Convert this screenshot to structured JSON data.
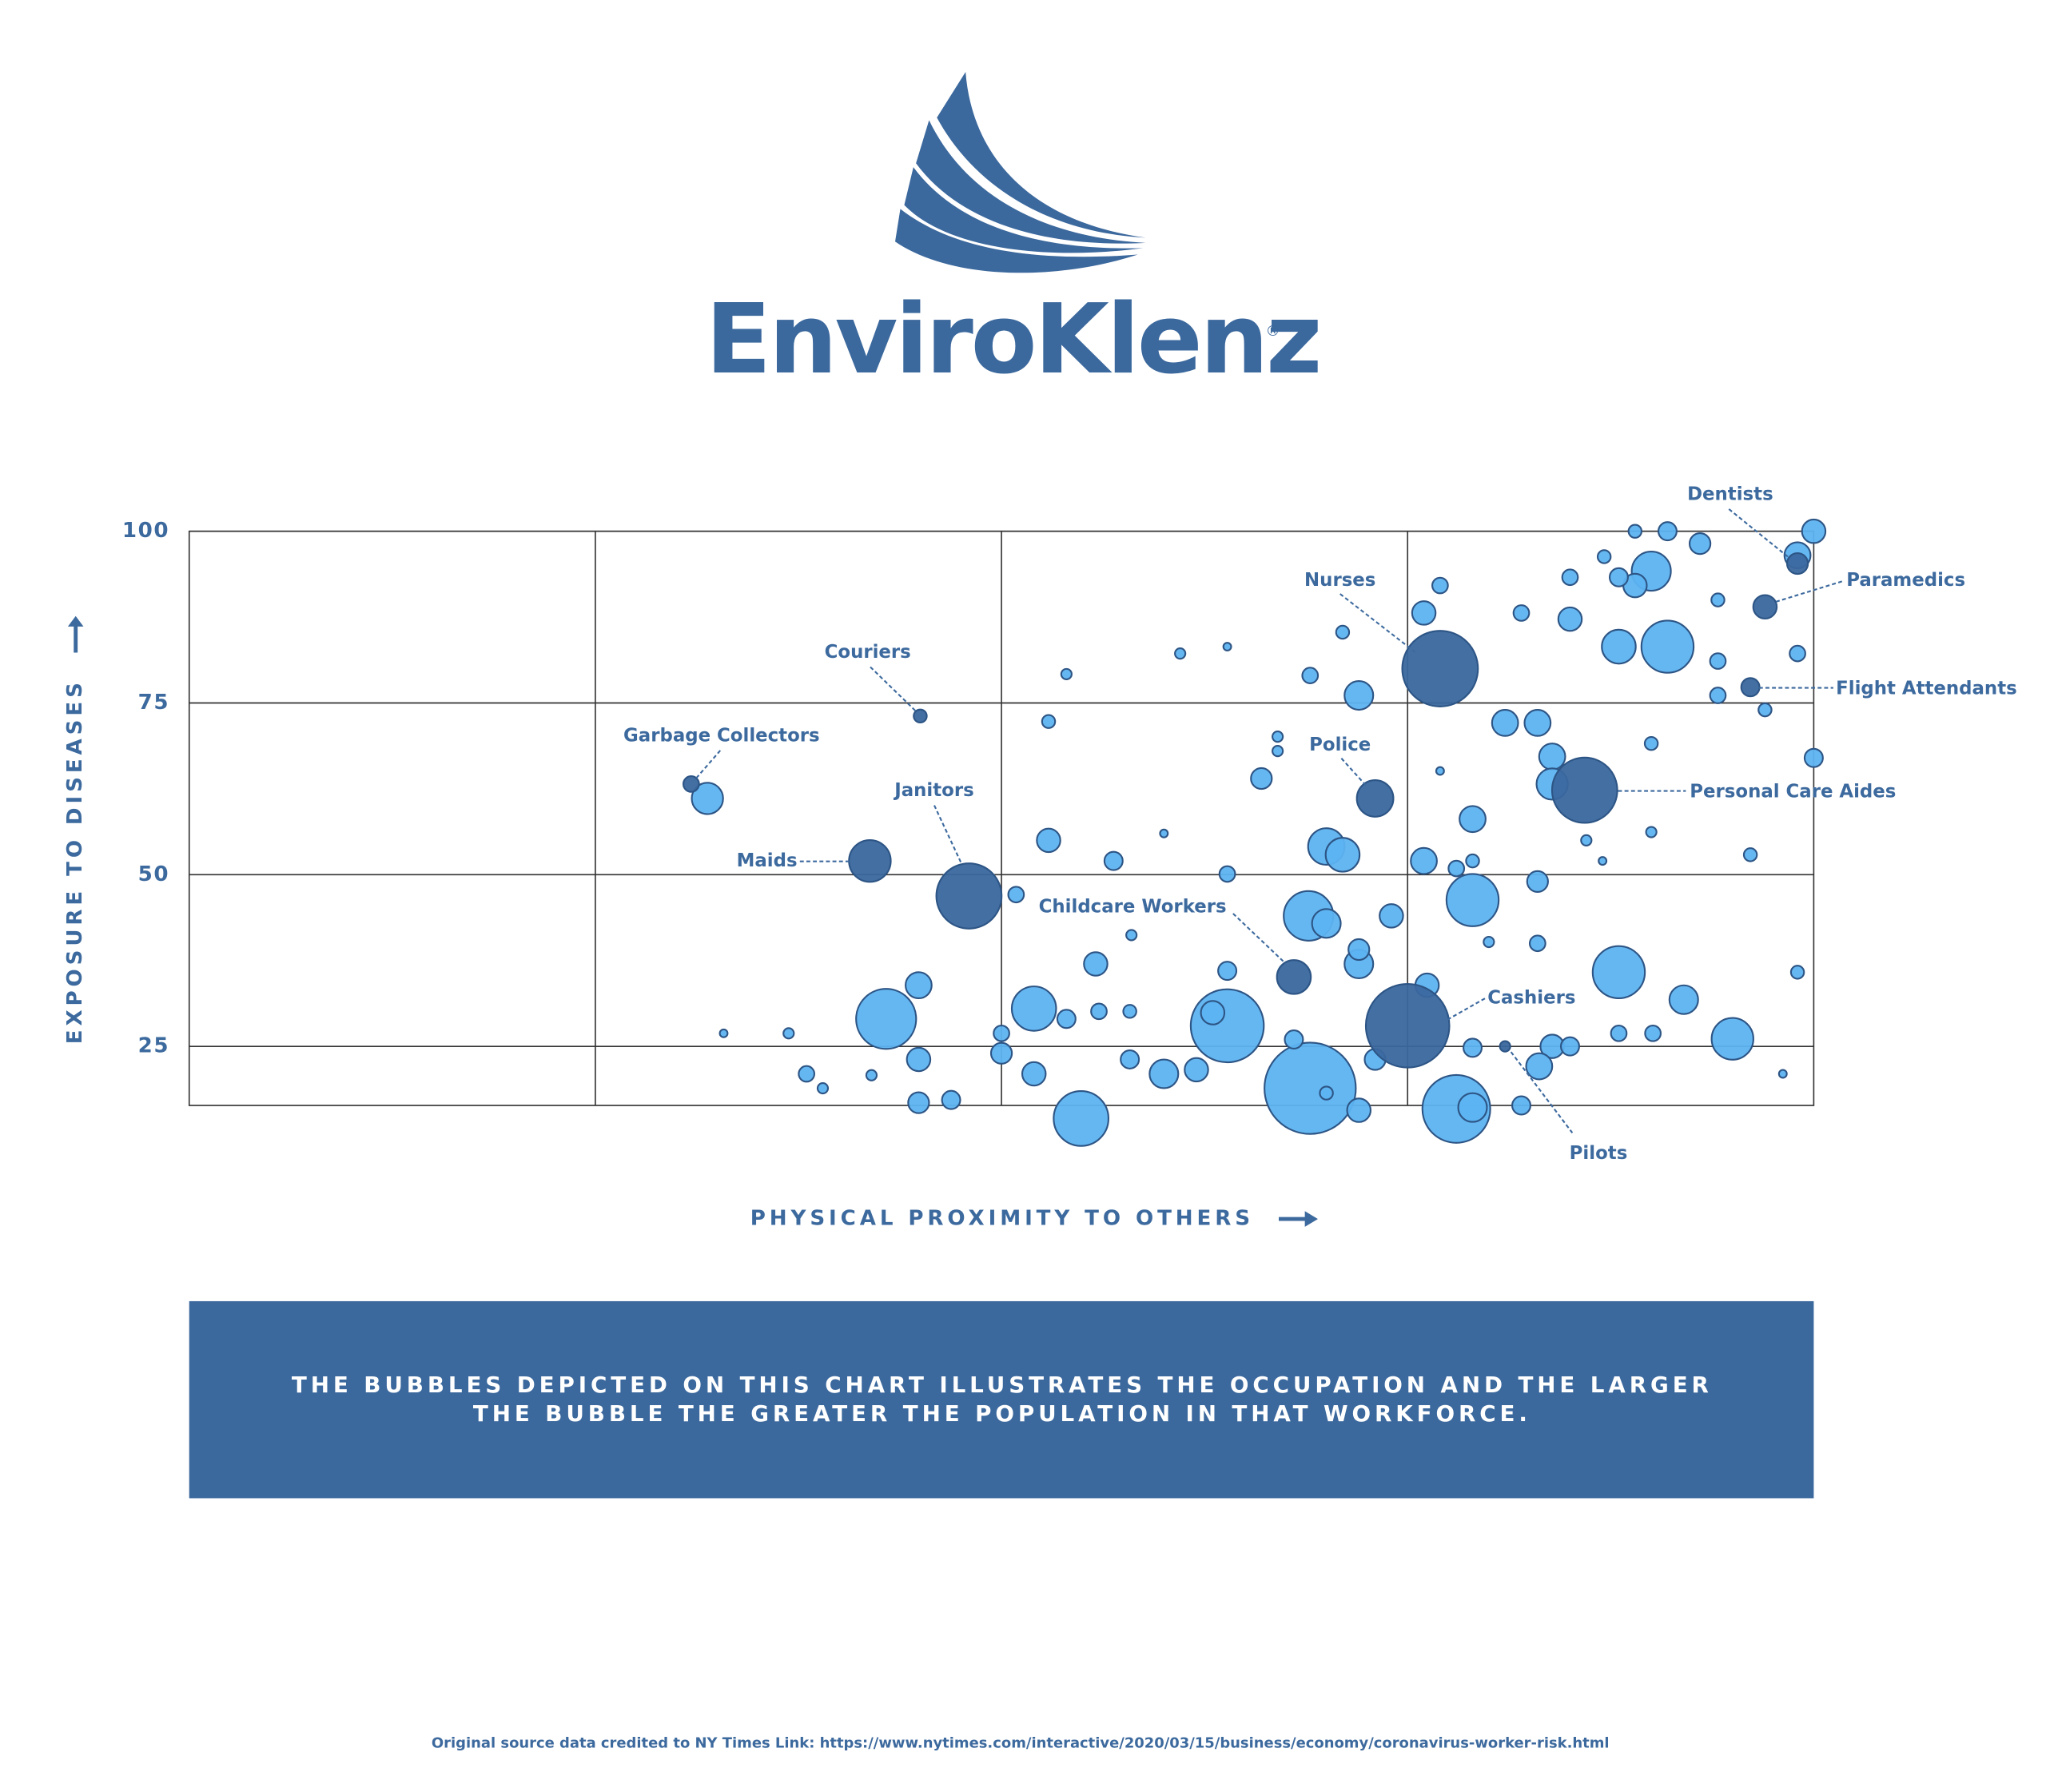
{
  "logo": {
    "name": "EnviroKlenz",
    "mark": "®"
  },
  "chart_data": {
    "type": "bubble",
    "x_label": "PHYSICAL PROXIMITY TO OTHERS",
    "y_label": "EXPOSURE TO DISEASES",
    "xlim": [
      0,
      100
    ],
    "xticks": [
      25,
      50,
      75
    ],
    "ylim": [
      16.4,
      100
    ],
    "yticks": [
      25,
      50,
      75,
      100
    ],
    "grid": true,
    "highlighted": {
      "color": "#3a679e",
      "labels": [
        "Dentists",
        "Paramedics",
        "Flight Attendants",
        "Nurses",
        "Couriers",
        "Garbage Collectors",
        "Police",
        "Personal Care Aides",
        "Maids",
        "Janitors",
        "Childcare Workers",
        "Cashiers",
        "Pilots"
      ],
      "x": [
        99.0,
        97.0,
        96.1,
        77.0,
        45.0,
        30.9,
        73.0,
        85.9,
        41.9,
        48.0,
        68.0,
        75.0,
        81.0
      ],
      "y": [
        95.3,
        89,
        77.3,
        80,
        73.1,
        63.2,
        61.1,
        62.3,
        52,
        46.9,
        35.1,
        28,
        25
      ],
      "sizes": [
        8,
        9,
        7,
        29,
        5,
        6,
        14,
        25,
        16,
        25,
        13,
        32,
        4
      ]
    },
    "others": {
      "color": "#5db3f1",
      "x": [
        31.9,
        100.0,
        91.0,
        89.0,
        93.0,
        99.0,
        90.0,
        89.0,
        77.0,
        87.1,
        85.0,
        88.0,
        76.0,
        82.0,
        85.0,
        91.0,
        88.0,
        71.0,
        99.0,
        94.1,
        72.0,
        69.0,
        54.0,
        61.0,
        63.9,
        52.9,
        81.0,
        83.0,
        83.9,
        100.0,
        83.9,
        66.0,
        52.9,
        56.9,
        79.0,
        70.0,
        71.0,
        76.0,
        79.0,
        83.0,
        68.9,
        70.0,
        74.0,
        50.9,
        72.0,
        72.0,
        88.0,
        92.0,
        95.0,
        83.0,
        63.9,
        55.8,
        52.0,
        44.9,
        42.9,
        63.9,
        69.0,
        54.9,
        78.0,
        79.0,
        68.0,
        83.9,
        85.0,
        83.1,
        44.9,
        50.0,
        52.0,
        60.0,
        62.0,
        73.0,
        79.0,
        76.2,
        72.0,
        44.9,
        46.9,
        82.0,
        38.0,
        57.9,
        50.0,
        54.0,
        56.0,
        57.9,
        90.1,
        88.0,
        70.0,
        32.9,
        36.9,
        39.0,
        42.0,
        98.1,
        99.0,
        96.1,
        97.0,
        94.1,
        94.1,
        90.0,
        90.0,
        86.0,
        87.0,
        77.0,
        80.0,
        58.0,
        60.0,
        67.0,
        67.0,
        63.9,
        63.0,
        78.0,
        79.0
      ],
      "y": [
        61.1,
        100,
        100,
        100,
        98.2,
        96.5,
        94.2,
        92.1,
        92.1,
        96.3,
        93.3,
        93.3,
        88.1,
        88.1,
        87.2,
        83.2,
        83.2,
        85.3,
        82.2,
        81.1,
        76.1,
        79.0,
        79.2,
        82.2,
        83.2,
        72.3,
        72.1,
        72.1,
        67.2,
        67.0,
        63.2,
        64.0,
        55.0,
        52.0,
        58.1,
        54.1,
        52.9,
        52.0,
        46.3,
        49.0,
        44.0,
        42.9,
        44.0,
        47.1,
        37.0,
        39.1,
        35.8,
        31.8,
        26.1,
        40.0,
        36.0,
        37.0,
        30.5,
        33.9,
        29.0,
        28.0,
        18.9,
        14.5,
        15.9,
        16.1,
        26.0,
        25.0,
        25.0,
        22.1,
        23.1,
        24.0,
        21.0,
        21.0,
        21.6,
        23.1,
        24.8,
        33.9,
        15.7,
        16.8,
        17.2,
        16.4,
        21.0,
        23.1,
        26.9,
        29.0,
        30.1,
        30.1,
        26.9,
        26.9,
        18.2,
        26.9,
        26.9,
        18.9,
        20.8,
        21.0,
        35.8,
        52.9,
        74.0,
        76.1,
        90.0,
        69.1,
        56.2,
        55.0,
        52.0,
        65.1,
        40.2,
        41.2,
        56.0,
        70.1,
        68.0,
        50.1,
        29.9,
        50.9,
        52.0
      ],
      "sizes": [
        12,
        9,
        7,
        5,
        8,
        10,
        15,
        9,
        6,
        5,
        6,
        7,
        9,
        6,
        9,
        20,
        13,
        5,
        6,
        6,
        11,
        6,
        4,
        4,
        3,
        5,
        10,
        10,
        10,
        7,
        12,
        8,
        9,
        7,
        10,
        14,
        13,
        10,
        20,
        8,
        19,
        11,
        9,
        6,
        11,
        8,
        20,
        11,
        16,
        6,
        7,
        9,
        17,
        10,
        23,
        28,
        35,
        21,
        26,
        11,
        7,
        9,
        7,
        10,
        9,
        8,
        9,
        11,
        9,
        8,
        7,
        9,
        9,
        8,
        7,
        7,
        6,
        7,
        6,
        7,
        6,
        5,
        6,
        6,
        5,
        3,
        4,
        4,
        4,
        3,
        5,
        5,
        5,
        6,
        5,
        5,
        4,
        4,
        3,
        3,
        4,
        4,
        3,
        4,
        4,
        6,
        9,
        6,
        5
      ]
    }
  },
  "note": {
    "lines": [
      "THE BUBBLES DEPICTED ON THIS CHART ILLUSTRATES THE OCCUPATION AND THE LARGER",
      "THE BUBBLE THE GREATER THE POPULATION IN THAT WORKFORCE."
    ]
  },
  "source": "Original source data credited to NY Times Link: https://www.nytimes.com/interactive/2020/03/15/business/economy/coronavirus-worker-risk.html"
}
